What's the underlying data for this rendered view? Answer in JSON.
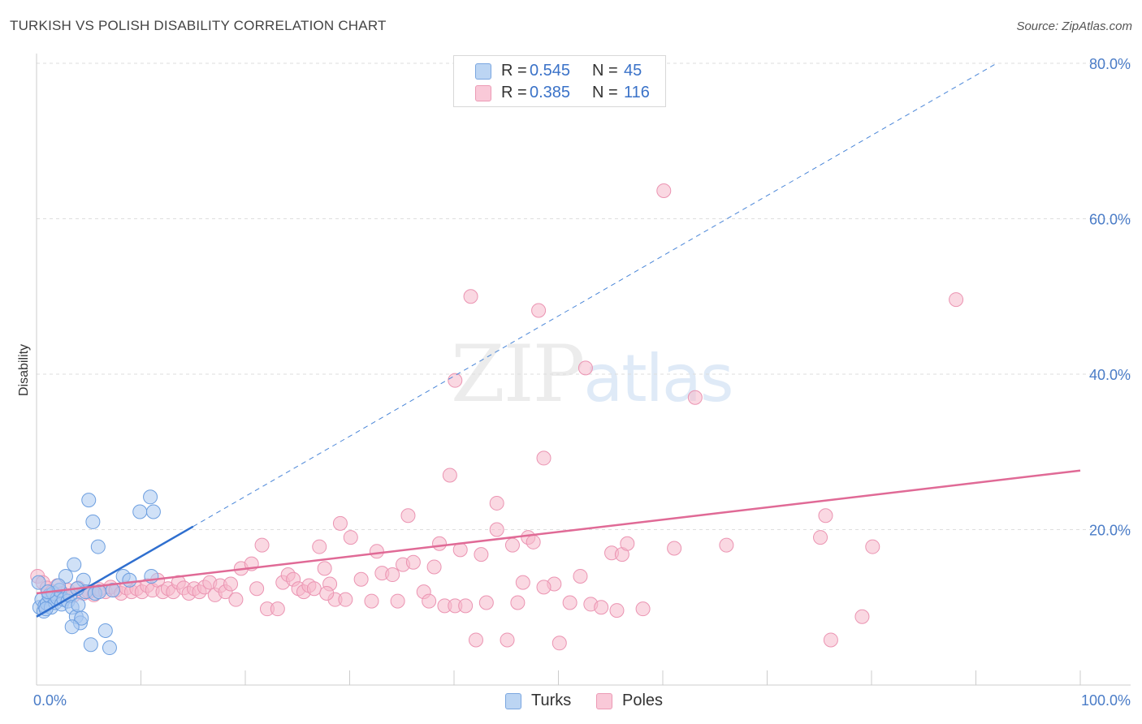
{
  "header": {
    "title": "TURKISH VS POLISH DISABILITY CORRELATION CHART",
    "source": "Source: ZipAtlas.com"
  },
  "legend": {
    "rows": [
      {
        "r_label": "R =",
        "r_value": "0.545",
        "n_label": "N =",
        "n_value": "45",
        "color": "#a9c8f0"
      },
      {
        "r_label": "R =",
        "r_value": "0.385",
        "n_label": "N =",
        "n_value": "116",
        "color": "#f5b8cb"
      }
    ]
  },
  "bottom_legend": {
    "turks": "Turks",
    "poles": "Poles"
  },
  "watermark": {
    "zip": "ZIP",
    "atlas": "atlas"
  },
  "chart_data": {
    "type": "scatter",
    "title": "TURKISH VS POLISH DISABILITY CORRELATION CHART",
    "xlabel": "",
    "ylabel": "Disability",
    "xlim": [
      0,
      100
    ],
    "ylim": [
      0,
      80
    ],
    "x_tick_labels": [
      "0.0%",
      "100.0%"
    ],
    "y_ticks": [
      20,
      40,
      60,
      80
    ],
    "y_tick_labels": [
      "20.0%",
      "40.0%",
      "60.0%",
      "80.0%"
    ],
    "grid": true,
    "colors": {
      "turks": "#4a86d8",
      "turks_fill": "#a9c8f0",
      "poles": "#e06a96",
      "poles_fill": "#f5b8cb"
    },
    "series": [
      {
        "name": "Turks",
        "points": [
          [
            0.2,
            13.2
          ],
          [
            0.3,
            10.0
          ],
          [
            0.5,
            11.0
          ],
          [
            0.7,
            9.5
          ],
          [
            0.8,
            10.2
          ],
          [
            1.0,
            10.5
          ],
          [
            1.2,
            11.5
          ],
          [
            1.4,
            10.0
          ],
          [
            1.6,
            11.8
          ],
          [
            1.8,
            10.6
          ],
          [
            2.0,
            11.2
          ],
          [
            2.2,
            12.2
          ],
          [
            2.4,
            10.4
          ],
          [
            2.6,
            11.0
          ],
          [
            2.8,
            14.0
          ],
          [
            3.0,
            10.8
          ],
          [
            3.2,
            11.5
          ],
          [
            3.4,
            10.0
          ],
          [
            3.6,
            15.5
          ],
          [
            3.8,
            8.8
          ],
          [
            4.0,
            10.3
          ],
          [
            4.2,
            8.0
          ],
          [
            4.3,
            8.6
          ],
          [
            4.5,
            13.5
          ],
          [
            4.7,
            12.0
          ],
          [
            5.0,
            23.8
          ],
          [
            5.2,
            5.2
          ],
          [
            5.4,
            21.0
          ],
          [
            5.6,
            11.8
          ],
          [
            5.9,
            17.8
          ],
          [
            6.0,
            12.0
          ],
          [
            6.6,
            7.0
          ],
          [
            7.0,
            4.8
          ],
          [
            7.3,
            12.2
          ],
          [
            8.3,
            14.0
          ],
          [
            8.9,
            13.5
          ],
          [
            9.9,
            22.3
          ],
          [
            10.9,
            24.2
          ],
          [
            11.2,
            22.3
          ],
          [
            11.0,
            14.0
          ],
          [
            3.4,
            7.5
          ],
          [
            2.1,
            12.8
          ],
          [
            1.1,
            12.0
          ],
          [
            3.9,
            12.4
          ],
          [
            0.9,
            9.8
          ]
        ]
      },
      {
        "name": "Poles",
        "points": [
          [
            0.1,
            14.0
          ],
          [
            0.6,
            13.2
          ],
          [
            1.0,
            12.5
          ],
          [
            1.5,
            12.0
          ],
          [
            2.0,
            12.8
          ],
          [
            2.5,
            11.8
          ],
          [
            3.0,
            12.2
          ],
          [
            3.5,
            11.5
          ],
          [
            4.0,
            12.5
          ],
          [
            4.5,
            11.8
          ],
          [
            5.0,
            12.0
          ],
          [
            5.5,
            11.6
          ],
          [
            6.0,
            12.3
          ],
          [
            6.6,
            12.0
          ],
          [
            7.1,
            12.6
          ],
          [
            7.6,
            12.2
          ],
          [
            8.1,
            11.8
          ],
          [
            8.6,
            12.5
          ],
          [
            9.1,
            12.0
          ],
          [
            9.6,
            12.4
          ],
          [
            10.1,
            12.0
          ],
          [
            10.6,
            12.8
          ],
          [
            11.1,
            12.2
          ],
          [
            11.6,
            13.5
          ],
          [
            12.1,
            12.0
          ],
          [
            12.6,
            12.4
          ],
          [
            13.1,
            12.0
          ],
          [
            13.6,
            13.2
          ],
          [
            14.1,
            12.5
          ],
          [
            14.6,
            11.8
          ],
          [
            15.1,
            12.4
          ],
          [
            15.6,
            12.0
          ],
          [
            16.1,
            12.6
          ],
          [
            16.6,
            13.2
          ],
          [
            17.1,
            11.6
          ],
          [
            17.6,
            12.8
          ],
          [
            18.1,
            12.0
          ],
          [
            18.6,
            13.0
          ],
          [
            19.1,
            11.0
          ],
          [
            19.6,
            15.0
          ],
          [
            20.6,
            15.6
          ],
          [
            21.1,
            12.4
          ],
          [
            21.6,
            18.0
          ],
          [
            22.1,
            9.8
          ],
          [
            23.1,
            9.8
          ],
          [
            23.6,
            13.2
          ],
          [
            24.1,
            14.2
          ],
          [
            24.6,
            13.6
          ],
          [
            25.1,
            12.4
          ],
          [
            25.6,
            12.0
          ],
          [
            26.1,
            12.8
          ],
          [
            26.6,
            12.4
          ],
          [
            27.1,
            17.8
          ],
          [
            27.6,
            15.0
          ],
          [
            28.1,
            13.0
          ],
          [
            28.6,
            11.0
          ],
          [
            29.1,
            20.8
          ],
          [
            29.6,
            11.0
          ],
          [
            30.1,
            19.0
          ],
          [
            31.1,
            13.6
          ],
          [
            32.1,
            10.8
          ],
          [
            32.6,
            17.2
          ],
          [
            33.1,
            14.4
          ],
          [
            34.1,
            14.2
          ],
          [
            34.6,
            10.8
          ],
          [
            35.1,
            15.5
          ],
          [
            35.6,
            21.8
          ],
          [
            36.1,
            15.8
          ],
          [
            37.1,
            12.0
          ],
          [
            37.6,
            10.8
          ],
          [
            38.1,
            15.2
          ],
          [
            38.6,
            18.2
          ],
          [
            39.1,
            10.2
          ],
          [
            40.1,
            10.2
          ],
          [
            40.6,
            17.4
          ],
          [
            41.1,
            10.2
          ],
          [
            41.6,
            50.0
          ],
          [
            42.1,
            5.8
          ],
          [
            42.6,
            16.8
          ],
          [
            43.1,
            10.6
          ],
          [
            44.1,
            20.0
          ],
          [
            45.1,
            5.8
          ],
          [
            45.6,
            18.0
          ],
          [
            46.1,
            10.6
          ],
          [
            46.6,
            13.2
          ],
          [
            47.1,
            19.0
          ],
          [
            47.6,
            18.4
          ],
          [
            48.1,
            48.2
          ],
          [
            48.6,
            29.2
          ],
          [
            49.6,
            13.0
          ],
          [
            50.1,
            5.4
          ],
          [
            51.1,
            10.6
          ],
          [
            52.1,
            14.0
          ],
          [
            52.6,
            40.8
          ],
          [
            53.1,
            10.4
          ],
          [
            54.1,
            10.0
          ],
          [
            55.1,
            17.0
          ],
          [
            55.6,
            9.6
          ],
          [
            56.1,
            16.8
          ],
          [
            56.6,
            18.2
          ],
          [
            58.1,
            9.8
          ],
          [
            60.1,
            63.6
          ],
          [
            61.1,
            17.6
          ],
          [
            63.1,
            37.0
          ],
          [
            66.1,
            18.0
          ],
          [
            75.1,
            19.0
          ],
          [
            75.6,
            21.8
          ],
          [
            76.1,
            5.8
          ],
          [
            79.1,
            8.8
          ],
          [
            80.1,
            17.8
          ],
          [
            88.1,
            49.6
          ],
          [
            40.1,
            39.2
          ],
          [
            39.6,
            27.0
          ],
          [
            44.1,
            23.4
          ],
          [
            27.8,
            11.8
          ],
          [
            48.6,
            12.6
          ]
        ]
      }
    ],
    "trend_lines": [
      {
        "series": "Turks",
        "x": [
          0,
          15
        ],
        "y": [
          8.8,
          20.4
        ],
        "extension_x": [
          15,
          92
        ],
        "extension_y": [
          20.4,
          80
        ]
      },
      {
        "series": "Poles",
        "x": [
          0,
          100
        ],
        "y": [
          11.8,
          27.6
        ]
      }
    ]
  }
}
